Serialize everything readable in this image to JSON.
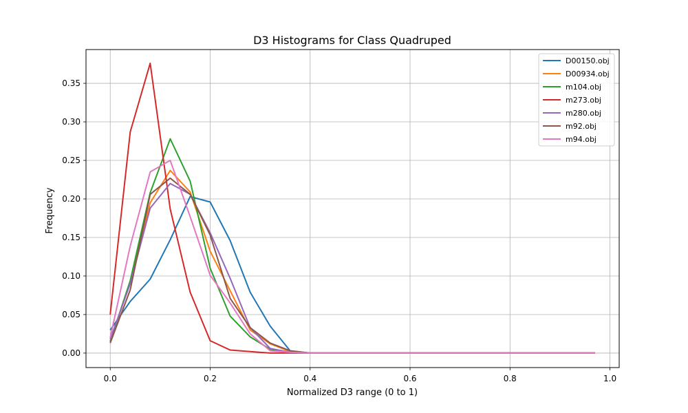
{
  "chart_data": {
    "type": "line",
    "title": "D3 Histograms for Class Quadruped",
    "xlabel": "Normalized D3 range (0 to 1)",
    "ylabel": "Frequency",
    "xlim": [
      -0.0485,
      1.0185
    ],
    "ylim": [
      -0.0188,
      0.3938
    ],
    "xticks": [
      0.0,
      0.2,
      0.4,
      0.6,
      0.8,
      1.0
    ],
    "xtick_labels": [
      "0.0",
      "0.2",
      "0.4",
      "0.6",
      "0.8",
      "1.0"
    ],
    "yticks": [
      0.0,
      0.05,
      0.1,
      0.15,
      0.2,
      0.25,
      0.3,
      0.35
    ],
    "ytick_labels": [
      "0.00",
      "0.05",
      "0.10",
      "0.15",
      "0.20",
      "0.25",
      "0.30",
      "0.35"
    ],
    "grid": true,
    "legend_position": "top-right",
    "x": [
      0.0,
      0.04,
      0.08,
      0.12,
      0.16,
      0.2,
      0.24,
      0.28,
      0.32,
      0.36,
      0.4,
      0.97
    ],
    "series": [
      {
        "name": "D00150.obj",
        "color": "#1f77b4",
        "values": [
          0.03,
          0.067,
          0.096,
          0.147,
          0.203,
          0.196,
          0.146,
          0.079,
          0.035,
          0.003,
          0.0,
          0.0
        ]
      },
      {
        "name": "D00934.obj",
        "color": "#ff7f0e",
        "values": [
          0.015,
          0.092,
          0.195,
          0.237,
          0.209,
          0.132,
          0.081,
          0.03,
          0.012,
          0.002,
          0.0,
          0.0
        ]
      },
      {
        "name": "m104.obj",
        "color": "#2ca02c",
        "values": [
          0.015,
          0.094,
          0.208,
          0.278,
          0.223,
          0.11,
          0.048,
          0.021,
          0.005,
          0.001,
          0.0,
          0.0
        ]
      },
      {
        "name": "m273.obj",
        "color": "#d62728",
        "values": [
          0.05,
          0.287,
          0.376,
          0.187,
          0.079,
          0.016,
          0.004,
          0.002,
          0.0,
          0.0,
          0.0,
          0.0
        ]
      },
      {
        "name": "m280.obj",
        "color": "#9467bd",
        "values": [
          0.018,
          0.09,
          0.188,
          0.22,
          0.206,
          0.156,
          0.097,
          0.033,
          0.006,
          0.001,
          0.0,
          0.0
        ]
      },
      {
        "name": "m92.obj",
        "color": "#8c564b",
        "values": [
          0.013,
          0.082,
          0.206,
          0.227,
          0.206,
          0.153,
          0.071,
          0.033,
          0.013,
          0.003,
          0.0,
          0.0
        ]
      },
      {
        "name": "m94.obj",
        "color": "#e377c2",
        "values": [
          0.02,
          0.139,
          0.235,
          0.25,
          0.177,
          0.101,
          0.065,
          0.025,
          0.003,
          0.001,
          0.0,
          0.0
        ]
      }
    ]
  }
}
